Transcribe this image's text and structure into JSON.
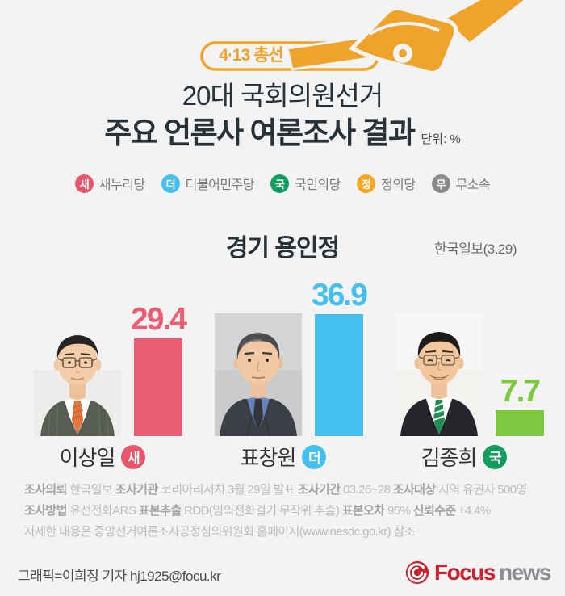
{
  "banner": {
    "badge": "4·13 총선"
  },
  "title": {
    "line1": "20대 국회의원선거",
    "line2": "주요 언론사 여론조사 결과",
    "unit": "단위: %"
  },
  "legend": {
    "items": [
      {
        "short": "새",
        "label": "새누리당",
        "color": "#e8566c"
      },
      {
        "short": "더",
        "label": "더불어민주당",
        "color": "#45c0ee"
      },
      {
        "short": "국",
        "label": "국민의당",
        "color": "#129e5e"
      },
      {
        "short": "정",
        "label": "정의당",
        "color": "#f5a81e"
      },
      {
        "short": "무",
        "label": "무소속",
        "color": "#8a8a8a"
      }
    ]
  },
  "section": {
    "district": "경기 용인정",
    "source": "한국일보(3.29)"
  },
  "chart_data": {
    "type": "bar",
    "title": "경기 용인정",
    "subtitle": "20대 국회의원선거 주요 언론사 여론조사 결과",
    "unit": "%",
    "source": "한국일보(3.29)",
    "categories": [
      "이상일",
      "표창원",
      "김종희"
    ],
    "values": [
      29.4,
      36.9,
      7.7
    ],
    "series_colors": [
      "#ea5d72",
      "#45c0ee",
      "#7cc83e"
    ],
    "parties": [
      "새누리당",
      "더불어민주당",
      "국민의당"
    ],
    "party_badges": [
      {
        "short": "새",
        "color": "#e8566c"
      },
      {
        "short": "더",
        "color": "#45c0ee"
      },
      {
        "short": "국",
        "color": "#129e5e"
      }
    ],
    "ylim": [
      0,
      40
    ],
    "grid": false,
    "legend_position": "top"
  },
  "footnotes": {
    "lines": [
      [
        {
          "t": "조사의뢰",
          "b": true
        },
        {
          "t": " 한국일보 ",
          "b": false
        },
        {
          "t": "조사기관",
          "b": true
        },
        {
          "t": " 코리아리서치  3월 29일 발표 ",
          "b": false
        },
        {
          "t": "조사기간",
          "b": true
        },
        {
          "t": " 03.26~28 ",
          "b": false
        },
        {
          "t": "조사대상",
          "b": true
        },
        {
          "t": " 지역 유권자 500명",
          "b": false
        }
      ],
      [
        {
          "t": "조사방법",
          "b": true
        },
        {
          "t": " 유선전화ARS ",
          "b": false
        },
        {
          "t": "표본추출",
          "b": true
        },
        {
          "t": " RDD(임의전화걸기 무작위 추출) ",
          "b": false
        },
        {
          "t": "표본오차",
          "b": true
        },
        {
          "t": " 95%  ",
          "b": false
        },
        {
          "t": "신뢰수준",
          "b": true
        },
        {
          "t": " ±4.4%",
          "b": false
        }
      ],
      [
        {
          "t": "자세한 내용은 중앙선거여론조사공정심의위원회 홈페이지(www.nesdc.go.kr) 참조",
          "b": false
        }
      ]
    ]
  },
  "credit": "그래픽=이희정 기자 hj1925@focu.kr",
  "logo": {
    "primary": "Focus",
    "secondary": "news",
    "primary_color": "#cf2030",
    "secondary_color": "#8b8f93"
  }
}
